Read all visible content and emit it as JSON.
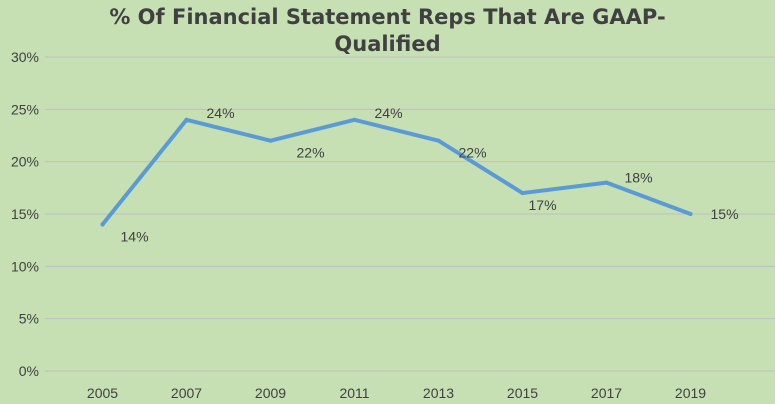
{
  "chart_data": {
    "type": "line",
    "title": "% Of Financial Statement Reps That Are GAAP-Qualified",
    "xlabel": "",
    "ylabel": "",
    "categories": [
      "2005",
      "2007",
      "2009",
      "2011",
      "2013",
      "2015",
      "2017",
      "2019"
    ],
    "series": [
      {
        "values": [
          14,
          24,
          22,
          24,
          22,
          17,
          18,
          15
        ],
        "data_labels": [
          "14%",
          "24%",
          "22%",
          "24%",
          "22%",
          "17%",
          "18%",
          "15%"
        ],
        "color": "#5b9bd5"
      }
    ],
    "yticks": [
      "0%",
      "5%",
      "10%",
      "15%",
      "20%",
      "25%",
      "30%"
    ],
    "ylim": [
      0,
      30
    ],
    "grid": true,
    "gridline_color": "#bfbfbf",
    "background_color": "#c6e0b4",
    "legend": "none"
  }
}
